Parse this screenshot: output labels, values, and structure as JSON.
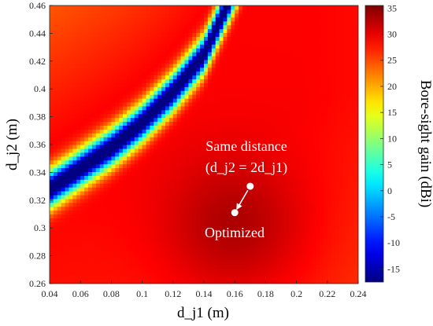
{
  "chart_data": {
    "type": "heatmap",
    "title": "",
    "xlabel": "d_j1 (m)",
    "ylabel": "d_j2 (m)",
    "colorbar_label": "Bore-sight gain (dBi)",
    "xlim": [
      0.04,
      0.24
    ],
    "ylim": [
      0.26,
      0.46
    ],
    "clim": [
      -17.5,
      35.5
    ],
    "x_ticks": [
      "0.04",
      "0.06",
      "0.08",
      "0.1",
      "0.12",
      "0.14",
      "0.16",
      "0.18",
      "0.2",
      "0.22",
      "0.24"
    ],
    "y_ticks": [
      "0.26",
      "0.28",
      "0.3",
      "0.32",
      "0.34",
      "0.36",
      "0.38",
      "0.4",
      "0.42",
      "0.44",
      "0.46"
    ],
    "colorbar_ticks": [
      "35",
      "30",
      "25",
      "20",
      "15",
      "10",
      "5",
      "0",
      "-5",
      "-10",
      "-15"
    ],
    "null_curve": {
      "x": [
        0.04,
        0.06,
        0.08,
        0.1,
        0.12,
        0.14,
        0.155
      ],
      "y": [
        0.328,
        0.343,
        0.358,
        0.376,
        0.398,
        0.425,
        0.46
      ]
    },
    "peak_point": {
      "x": 0.16,
      "y": 0.3,
      "value": 34
    },
    "points": [
      {
        "name": "same-distance",
        "x": 0.17,
        "y": 0.33,
        "label_lines": [
          "Same distance",
          "(d_j2 = 2d_j1)"
        ]
      },
      {
        "name": "optimized",
        "x": 0.16,
        "y": 0.311,
        "label": "Optimized"
      }
    ]
  }
}
